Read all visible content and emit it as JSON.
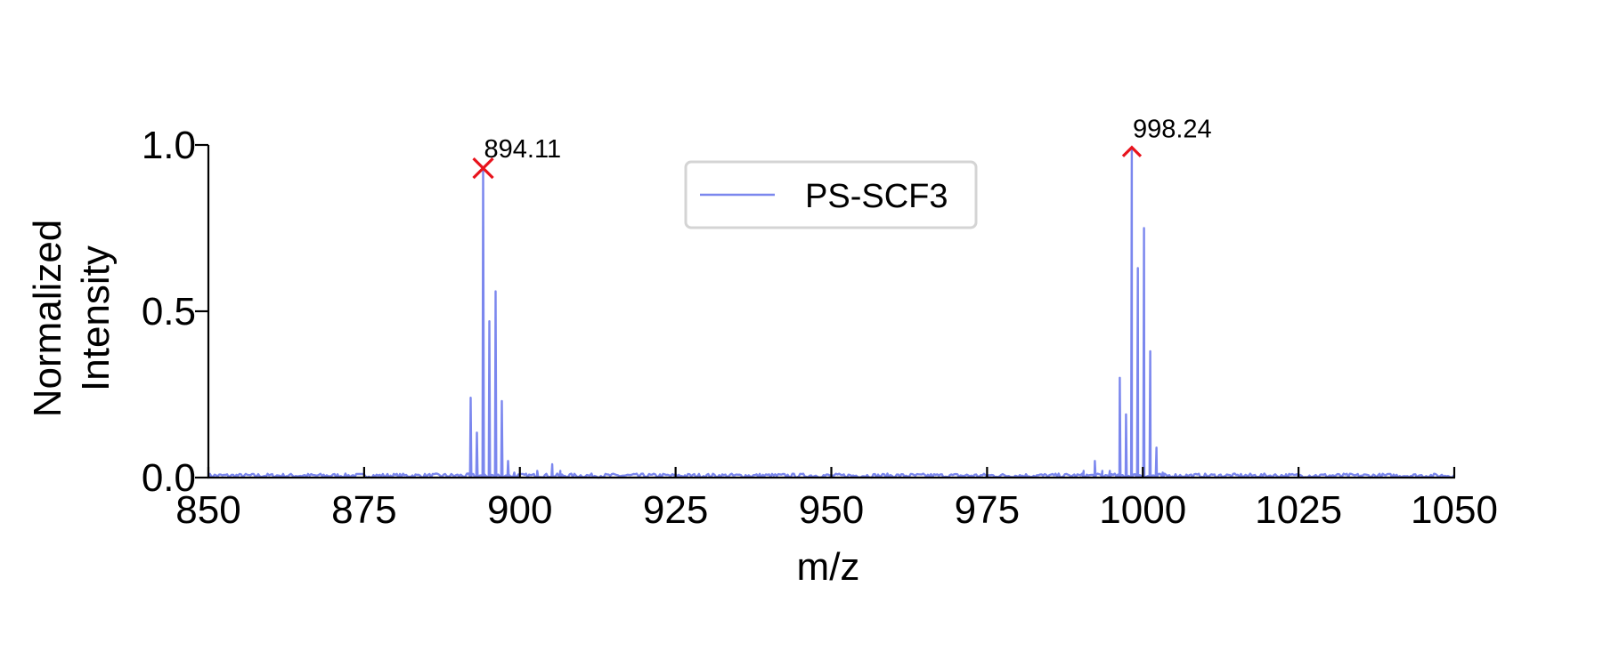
{
  "chart_data": {
    "type": "line",
    "title": "",
    "xlabel": "m/z",
    "ylabel_lines": [
      "Normalized",
      "Intensity"
    ],
    "xlim": [
      850,
      1050
    ],
    "ylim": [
      0,
      1
    ],
    "x_ticks": [
      850,
      875,
      900,
      925,
      950,
      975,
      1000,
      1025,
      1050
    ],
    "y_ticks": [
      0,
      0.5,
      1
    ],
    "y_tick_labels": [
      "0.0",
      "0.5",
      "1.0"
    ],
    "grid": false,
    "legend": {
      "position": "top-center",
      "entries": [
        "PS-SCF3"
      ]
    },
    "series": [
      {
        "name": "PS-SCF3",
        "color": "#7b87ee",
        "peaks": [
          {
            "x": 892.1,
            "y": 0.24
          },
          {
            "x": 893.1,
            "y": 0.135
          },
          {
            "x": 894.11,
            "y": 0.93
          },
          {
            "x": 895.1,
            "y": 0.47
          },
          {
            "x": 896.1,
            "y": 0.56
          },
          {
            "x": 897.1,
            "y": 0.23
          },
          {
            "x": 898.1,
            "y": 0.05
          },
          {
            "x": 899.1,
            "y": 0.015
          },
          {
            "x": 902.8,
            "y": 0.02
          },
          {
            "x": 905.2,
            "y": 0.04
          },
          {
            "x": 906.5,
            "y": 0.02
          },
          {
            "x": 990.5,
            "y": 0.02
          },
          {
            "x": 992.3,
            "y": 0.05
          },
          {
            "x": 993.5,
            "y": 0.02
          },
          {
            "x": 994.7,
            "y": 0.02
          },
          {
            "x": 996.3,
            "y": 0.3
          },
          {
            "x": 997.3,
            "y": 0.19
          },
          {
            "x": 998.24,
            "y": 0.99
          },
          {
            "x": 999.2,
            "y": 0.63
          },
          {
            "x": 1000.2,
            "y": 0.75
          },
          {
            "x": 1001.2,
            "y": 0.38
          },
          {
            "x": 1002.2,
            "y": 0.09
          },
          {
            "x": 1003.2,
            "y": 0.015
          }
        ],
        "noise_level": 0.012
      }
    ],
    "annotations": [
      {
        "x": 894.11,
        "y": 0.93,
        "label": "894.11",
        "marker": "x",
        "color": "#e8131c"
      },
      {
        "x": 998.24,
        "y": 0.99,
        "label": "998.24",
        "marker": "caret",
        "color": "#e8131c"
      }
    ]
  }
}
